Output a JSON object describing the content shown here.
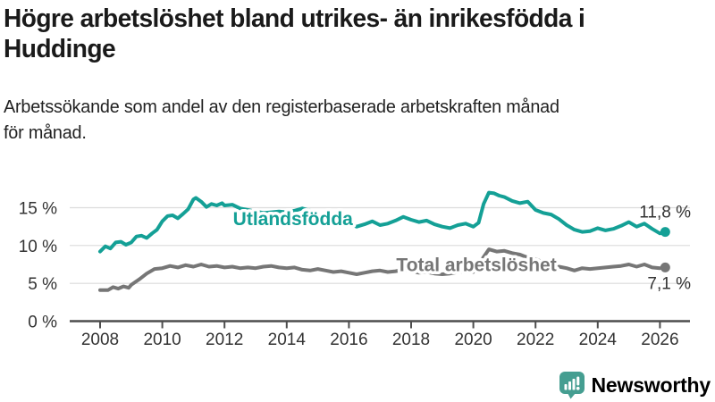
{
  "header": {
    "title_lines": [
      "Högre arbetslöshet bland utrikes- än inrikesfödda i",
      "Huddinge"
    ],
    "subtitle_lines": [
      "Arbetssökande som andel av den registerbaserade arbetskraften månad",
      "för månad."
    ]
  },
  "chart_data": {
    "type": "line",
    "title": "Högre arbetslöshet bland utrikes- än inrikesfödda i Huddinge",
    "subtitle": "Arbetssökande som andel av den registerbaserade arbetskraften månad för månad.",
    "xlabel": "",
    "ylabel": "",
    "grid": "horizontal",
    "xlim": [
      2007.6,
      2027.0
    ],
    "ylim": [
      0,
      17.5
    ],
    "x_ticks": [
      2008,
      2010,
      2012,
      2014,
      2016,
      2018,
      2020,
      2022,
      2024,
      2026
    ],
    "y_ticks": [
      0,
      5,
      10,
      15
    ],
    "y_tick_labels": [
      "0 %",
      "5 %",
      "10 %",
      "15 %"
    ],
    "colors": {
      "grid": "#dcdcdc",
      "axis": "#4d4d4d",
      "tick_text": "#333333",
      "annotation_text": "#333333"
    },
    "series": [
      {
        "id": "utlandsfodda",
        "name": "Utlandsfödda",
        "color": "#14a096",
        "end_label": "11,8 %",
        "end_value": 11.8,
        "end_label_position": "above",
        "label_anchor": {
          "year": 2014.2,
          "pct": 13.55
        },
        "points": [
          [
            2008.0,
            9.2
          ],
          [
            2008.17,
            9.9
          ],
          [
            2008.33,
            9.6
          ],
          [
            2008.5,
            10.4
          ],
          [
            2008.67,
            10.5
          ],
          [
            2008.83,
            10.1
          ],
          [
            2009.0,
            10.4
          ],
          [
            2009.17,
            11.2
          ],
          [
            2009.33,
            11.3
          ],
          [
            2009.5,
            11.0
          ],
          [
            2009.67,
            11.6
          ],
          [
            2009.83,
            12.1
          ],
          [
            2010.0,
            13.2
          ],
          [
            2010.17,
            13.9
          ],
          [
            2010.33,
            14.0
          ],
          [
            2010.5,
            13.6
          ],
          [
            2010.67,
            14.2
          ],
          [
            2010.83,
            14.8
          ],
          [
            2011.0,
            16.1
          ],
          [
            2011.08,
            16.3
          ],
          [
            2011.25,
            15.8
          ],
          [
            2011.42,
            15.1
          ],
          [
            2011.58,
            15.5
          ],
          [
            2011.75,
            15.3
          ],
          [
            2011.92,
            15.6
          ],
          [
            2012.0,
            15.3
          ],
          [
            2012.25,
            15.4
          ],
          [
            2012.5,
            14.9
          ],
          [
            2012.75,
            14.7
          ],
          [
            2013.0,
            14.5
          ],
          [
            2013.25,
            14.3
          ],
          [
            2013.5,
            14.4
          ],
          [
            2013.75,
            14.5
          ],
          [
            2014.0,
            14.4
          ],
          [
            2014.25,
            14.6
          ],
          [
            2014.5,
            14.9
          ],
          [
            2014.75,
            14.6
          ],
          [
            2015.0,
            14.1
          ],
          [
            2015.25,
            13.8
          ],
          [
            2015.5,
            13.4
          ],
          [
            2015.75,
            13.1
          ],
          [
            2016.0,
            12.9
          ],
          [
            2016.25,
            12.5
          ],
          [
            2016.5,
            12.8
          ],
          [
            2016.75,
            13.2
          ],
          [
            2017.0,
            12.7
          ],
          [
            2017.25,
            12.9
          ],
          [
            2017.5,
            13.3
          ],
          [
            2017.75,
            13.8
          ],
          [
            2018.0,
            13.4
          ],
          [
            2018.25,
            13.1
          ],
          [
            2018.5,
            13.3
          ],
          [
            2018.75,
            12.8
          ],
          [
            2019.0,
            12.5
          ],
          [
            2019.25,
            12.3
          ],
          [
            2019.5,
            12.7
          ],
          [
            2019.75,
            12.9
          ],
          [
            2020.0,
            12.5
          ],
          [
            2020.17,
            13.0
          ],
          [
            2020.33,
            15.5
          ],
          [
            2020.5,
            17.0
          ],
          [
            2020.67,
            16.9
          ],
          [
            2020.83,
            16.6
          ],
          [
            2021.0,
            16.4
          ],
          [
            2021.25,
            15.9
          ],
          [
            2021.5,
            15.6
          ],
          [
            2021.75,
            15.8
          ],
          [
            2022.0,
            14.7
          ],
          [
            2022.25,
            14.3
          ],
          [
            2022.5,
            14.1
          ],
          [
            2022.75,
            13.5
          ],
          [
            2023.0,
            12.7
          ],
          [
            2023.25,
            12.1
          ],
          [
            2023.5,
            11.8
          ],
          [
            2023.75,
            11.9
          ],
          [
            2024.0,
            12.3
          ],
          [
            2024.25,
            12.0
          ],
          [
            2024.5,
            12.2
          ],
          [
            2024.75,
            12.6
          ],
          [
            2025.0,
            13.1
          ],
          [
            2025.25,
            12.5
          ],
          [
            2025.5,
            12.9
          ],
          [
            2025.75,
            12.2
          ],
          [
            2026.0,
            11.6
          ],
          [
            2026.17,
            11.8
          ]
        ]
      },
      {
        "id": "total",
        "name": "Total arbetslöshet",
        "color": "#767676",
        "end_label": "7,1 %",
        "end_value": 7.1,
        "end_label_position": "below",
        "label_anchor": {
          "year": 2020.1,
          "pct": 7.45
        },
        "points": [
          [
            2008.0,
            4.1
          ],
          [
            2008.25,
            4.1
          ],
          [
            2008.42,
            4.5
          ],
          [
            2008.58,
            4.3
          ],
          [
            2008.75,
            4.6
          ],
          [
            2008.92,
            4.4
          ],
          [
            2009.0,
            4.8
          ],
          [
            2009.25,
            5.5
          ],
          [
            2009.5,
            6.3
          ],
          [
            2009.75,
            6.9
          ],
          [
            2010.0,
            7.0
          ],
          [
            2010.25,
            7.3
          ],
          [
            2010.5,
            7.1
          ],
          [
            2010.75,
            7.4
          ],
          [
            2011.0,
            7.2
          ],
          [
            2011.25,
            7.5
          ],
          [
            2011.5,
            7.2
          ],
          [
            2011.75,
            7.3
          ],
          [
            2012.0,
            7.1
          ],
          [
            2012.25,
            7.2
          ],
          [
            2012.5,
            7.0
          ],
          [
            2012.75,
            7.1
          ],
          [
            2013.0,
            7.0
          ],
          [
            2013.25,
            7.2
          ],
          [
            2013.5,
            7.3
          ],
          [
            2013.75,
            7.1
          ],
          [
            2014.0,
            7.0
          ],
          [
            2014.25,
            7.1
          ],
          [
            2014.5,
            6.8
          ],
          [
            2014.75,
            6.7
          ],
          [
            2015.0,
            6.9
          ],
          [
            2015.25,
            6.7
          ],
          [
            2015.5,
            6.5
          ],
          [
            2015.75,
            6.6
          ],
          [
            2016.0,
            6.4
          ],
          [
            2016.25,
            6.2
          ],
          [
            2016.5,
            6.4
          ],
          [
            2016.75,
            6.6
          ],
          [
            2017.0,
            6.7
          ],
          [
            2017.25,
            6.5
          ],
          [
            2017.5,
            6.6
          ],
          [
            2017.75,
            6.8
          ],
          [
            2018.0,
            6.6
          ],
          [
            2018.25,
            6.4
          ],
          [
            2018.5,
            6.5
          ],
          [
            2018.75,
            6.3
          ],
          [
            2019.0,
            6.2
          ],
          [
            2019.25,
            6.3
          ],
          [
            2019.5,
            6.5
          ],
          [
            2019.75,
            6.6
          ],
          [
            2020.0,
            6.5
          ],
          [
            2020.25,
            8.0
          ],
          [
            2020.5,
            9.5
          ],
          [
            2020.75,
            9.2
          ],
          [
            2021.0,
            9.3
          ],
          [
            2021.25,
            9.0
          ],
          [
            2021.5,
            8.8
          ],
          [
            2021.75,
            8.4
          ],
          [
            2022.0,
            8.2
          ],
          [
            2022.25,
            7.8
          ],
          [
            2022.5,
            7.5
          ],
          [
            2022.75,
            7.2
          ],
          [
            2023.0,
            7.0
          ],
          [
            2023.25,
            6.7
          ],
          [
            2023.5,
            7.0
          ],
          [
            2023.75,
            6.9
          ],
          [
            2024.0,
            7.0
          ],
          [
            2024.25,
            7.1
          ],
          [
            2024.5,
            7.2
          ],
          [
            2024.75,
            7.3
          ],
          [
            2025.0,
            7.5
          ],
          [
            2025.25,
            7.2
          ],
          [
            2025.5,
            7.5
          ],
          [
            2025.75,
            7.1
          ],
          [
            2026.0,
            7.0
          ],
          [
            2026.17,
            7.1
          ]
        ]
      }
    ]
  },
  "footer": {
    "brand": "Newsworthy",
    "logo_icon": "bar-chart-speech-bubble-icon",
    "logo_color": "#459e91"
  }
}
